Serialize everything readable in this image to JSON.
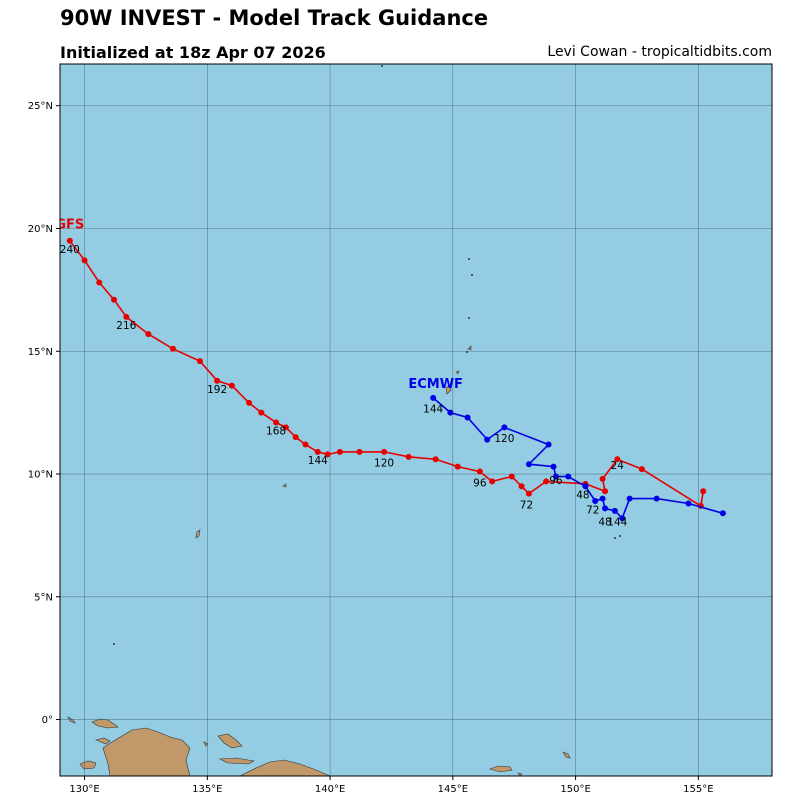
{
  "header": {
    "title": "90W INVEST - Model Track Guidance",
    "subtitle": "Initialized at 18z Apr 07 2026",
    "credit": "Levi Cowan - tropicaltidbits.com"
  },
  "colors": {
    "ocean": "#94cde3",
    "land": "#c0986a",
    "gfs": "#e60000",
    "ecmwf": "#0000e6",
    "grid": "#3a5a66"
  },
  "map": {
    "lon_range": [
      129,
      158
    ],
    "lat_range": [
      -2.3,
      26.7
    ],
    "lon_ticks": [
      {
        "v": 130,
        "label": "130°E"
      },
      {
        "v": 135,
        "label": "135°E"
      },
      {
        "v": 140,
        "label": "140°E"
      },
      {
        "v": 145,
        "label": "145°E"
      },
      {
        "v": 150,
        "label": "150°E"
      },
      {
        "v": 155,
        "label": "155°E"
      }
    ],
    "lat_ticks": [
      {
        "v": 0,
        "label": "0°"
      },
      {
        "v": 5,
        "label": "5°N"
      },
      {
        "v": 10,
        "label": "10°N"
      },
      {
        "v": 15,
        "label": "15°N"
      },
      {
        "v": 20,
        "label": "20°N"
      },
      {
        "v": 25,
        "label": "25°N"
      }
    ]
  },
  "chart_data": {
    "type": "scatter",
    "series": [
      {
        "name": "GFS",
        "points": [
          [
            155.2,
            9.3
          ],
          [
            155.1,
            8.7
          ],
          [
            152.7,
            10.2
          ],
          [
            151.7,
            10.6
          ],
          [
            151.1,
            9.8
          ],
          [
            151.2,
            9.3
          ],
          [
            150.4,
            9.6
          ],
          [
            148.8,
            9.7
          ],
          [
            148.1,
            9.2
          ],
          [
            147.8,
            9.5
          ],
          [
            147.4,
            9.9
          ],
          [
            146.6,
            9.7
          ],
          [
            146.1,
            10.1
          ],
          [
            145.2,
            10.3
          ],
          [
            144.3,
            10.6
          ],
          [
            143.2,
            10.7
          ],
          [
            142.2,
            10.9
          ],
          [
            141.2,
            10.9
          ],
          [
            140.4,
            10.9
          ],
          [
            139.9,
            10.8
          ],
          [
            139.5,
            10.9
          ],
          [
            139.0,
            11.2
          ],
          [
            138.6,
            11.5
          ],
          [
            138.2,
            11.9
          ],
          [
            137.8,
            12.1
          ],
          [
            137.2,
            12.5
          ],
          [
            136.7,
            12.9
          ],
          [
            136.0,
            13.6
          ],
          [
            135.4,
            13.8
          ],
          [
            134.7,
            14.6
          ],
          [
            133.6,
            15.1
          ],
          [
            132.6,
            15.7
          ],
          [
            131.7,
            16.4
          ],
          [
            131.2,
            17.1
          ],
          [
            130.6,
            17.8
          ],
          [
            130.0,
            18.7
          ],
          [
            129.4,
            19.5
          ]
        ],
        "labels": [
          {
            "lon": 151.7,
            "lat": 10.2,
            "text": "24"
          },
          {
            "lon": 148.0,
            "lat": 8.6,
            "text": "72"
          },
          {
            "lon": 146.1,
            "lat": 9.5,
            "text": "96"
          },
          {
            "lon": 142.2,
            "lat": 10.3,
            "text": "120"
          },
          {
            "lon": 139.5,
            "lat": 10.4,
            "text": "144"
          },
          {
            "lon": 137.8,
            "lat": 11.6,
            "text": "168"
          },
          {
            "lon": 135.4,
            "lat": 13.3,
            "text": "192"
          },
          {
            "lon": 131.7,
            "lat": 15.9,
            "text": "216"
          },
          {
            "lon": 129.4,
            "lat": 19.0,
            "text": "240"
          }
        ],
        "model_label": {
          "lon": 129.4,
          "lat": 20.0,
          "text": "GFS"
        }
      },
      {
        "name": "ECMWF",
        "points": [
          [
            156.0,
            8.4
          ],
          [
            154.6,
            8.8
          ],
          [
            153.3,
            9.0
          ],
          [
            152.2,
            9.0
          ],
          [
            151.9,
            8.2
          ],
          [
            151.6,
            8.5
          ],
          [
            151.2,
            8.6
          ],
          [
            151.1,
            9.0
          ],
          [
            150.8,
            8.9
          ],
          [
            150.4,
            9.5
          ],
          [
            149.7,
            9.9
          ],
          [
            149.2,
            9.9
          ],
          [
            149.1,
            10.3
          ],
          [
            148.1,
            10.4
          ],
          [
            148.9,
            11.2
          ],
          [
            147.1,
            11.9
          ],
          [
            146.4,
            11.4
          ],
          [
            145.6,
            12.3
          ],
          [
            144.9,
            12.5
          ],
          [
            144.2,
            13.1
          ]
        ],
        "labels": [
          {
            "lon": 150.3,
            "lat": 9.0,
            "text": "48"
          },
          {
            "lon": 150.7,
            "lat": 8.4,
            "text": "72"
          },
          {
            "lon": 149.2,
            "lat": 9.6,
            "text": "96"
          },
          {
            "lon": 147.1,
            "lat": 11.3,
            "text": "120"
          },
          {
            "lon": 144.2,
            "lat": 12.5,
            "text": "144"
          },
          {
            "lon": 151.2,
            "lat": 7.9,
            "text": "48"
          },
          {
            "lon": 151.7,
            "lat": 7.9,
            "text": "144"
          }
        ],
        "model_label": {
          "lon": 144.3,
          "lat": 13.5,
          "text": "ECMWF"
        }
      }
    ]
  }
}
